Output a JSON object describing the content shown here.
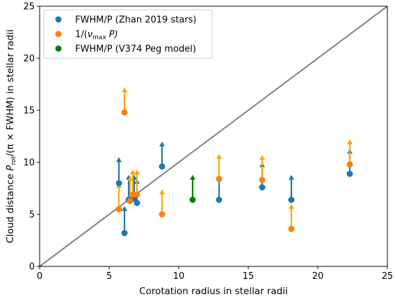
{
  "chart_data": {
    "type": "scatter",
    "xlabel": "Corotation radius in stellar radii",
    "ylabel": {
      "prefix": "Cloud distance ",
      "p": "P",
      "rot": "rot",
      "suffix": "/(π × FWHM) in stellar radii"
    },
    "xlim": [
      0,
      25
    ],
    "ylim": [
      0,
      25
    ],
    "xticks": [
      0,
      5,
      10,
      15,
      20,
      25
    ],
    "yticks": [
      0,
      5,
      10,
      15,
      20,
      25
    ],
    "identity_line": {
      "x": [
        0,
        25
      ],
      "y": [
        0,
        25
      ],
      "color": "#808080"
    },
    "legend_position": "top-left",
    "series": [
      {
        "name": "FWHM/P (Zhan 2019 stars)",
        "color": "#1f77b4",
        "points": [
          {
            "x": 5.7,
            "y": 8.0,
            "arrow_to": 10.5
          },
          {
            "x": 6.1,
            "y": 3.2,
            "arrow_to": 5.8
          },
          {
            "x": 6.4,
            "y": 6.4,
            "arrow_to": 8.8
          },
          {
            "x": 6.8,
            "y": 6.5,
            "arrow_to": 8.8
          },
          {
            "x": 7.0,
            "y": 6.1,
            "arrow_to": 8.4
          },
          {
            "x": 8.8,
            "y": 9.6,
            "arrow_to": 12.0
          },
          {
            "x": 12.9,
            "y": 6.4,
            "arrow_to": 8.8
          },
          {
            "x": 16.0,
            "y": 7.6,
            "arrow_to": 10.0
          },
          {
            "x": 18.1,
            "y": 6.4,
            "arrow_to": 8.8
          },
          {
            "x": 22.3,
            "y": 8.9,
            "arrow_to": 11.3
          }
        ]
      },
      {
        "name_parts": {
          "prefix": "1/(",
          "nu": "ν",
          "sub": "max",
          "suffix": " P)"
        },
        "color": "#ff7f0e",
        "arrow_color": "#ffa500",
        "points": [
          {
            "x": 5.7,
            "y": 5.5,
            "arrow_to": 8.0
          },
          {
            "x": 6.1,
            "y": 14.8,
            "arrow_to": 17.2
          },
          {
            "x": 6.5,
            "y": 6.3,
            "arrow_to": 8.7
          },
          {
            "x": 6.7,
            "y": 6.9,
            "arrow_to": 9.3
          },
          {
            "x": 7.0,
            "y": 6.9,
            "arrow_to": 9.3
          },
          {
            "x": 8.8,
            "y": 5.0,
            "arrow_to": 7.4
          },
          {
            "x": 12.9,
            "y": 8.4,
            "arrow_to": 10.8
          },
          {
            "x": 16.0,
            "y": 8.3,
            "arrow_to": 10.7
          },
          {
            "x": 18.1,
            "y": 3.6,
            "arrow_to": 6.0
          },
          {
            "x": 22.3,
            "y": 9.8,
            "arrow_to": 12.2
          }
        ]
      },
      {
        "name": "FWHM/P (V374 Peg model)",
        "color": "#008000",
        "points": [
          {
            "x": 11.0,
            "y": 6.4,
            "arrow_to": 8.8
          }
        ]
      }
    ]
  }
}
